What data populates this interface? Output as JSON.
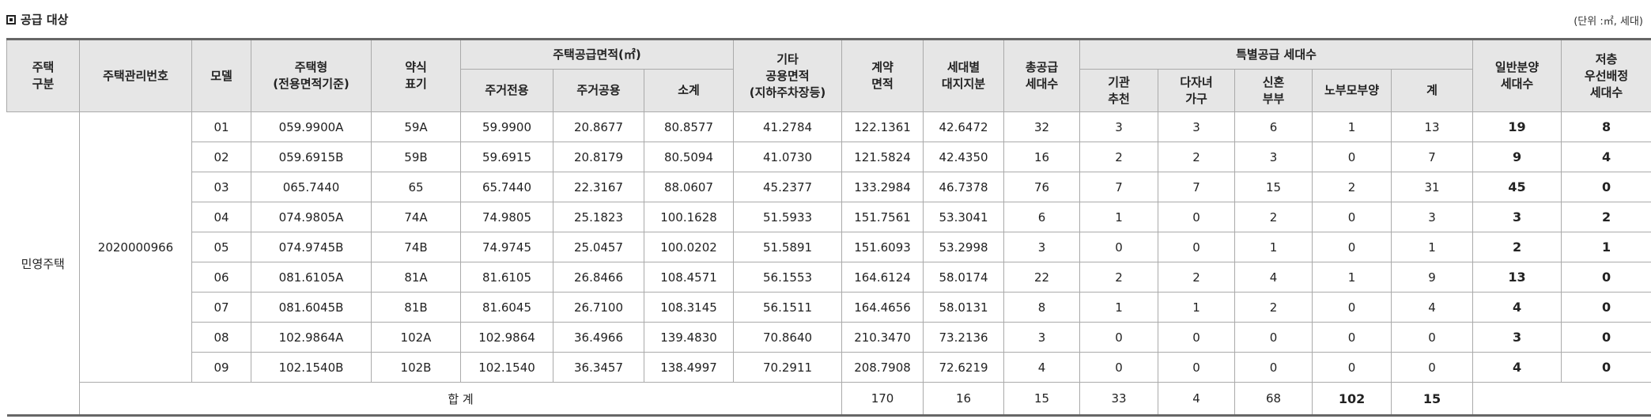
{
  "title": "공급 대상",
  "unit": "(단위 :㎡, 세대)",
  "headers": {
    "housing_type": [
      "주택",
      "구분"
    ],
    "mgmt_no": "주택관리번호",
    "model": "모델",
    "housing_form": [
      "주택형",
      "(전용면적기준)"
    ],
    "abbr": [
      "약식",
      "표기"
    ],
    "supply_area": "주택공급면적(㎡)",
    "private": "주거전용",
    "common": "주거공용",
    "subtotal": "소계",
    "other_common": [
      "기타",
      "공용면적",
      "(지하주차장등)"
    ],
    "contract_area": [
      "계약",
      "면적"
    ],
    "land_share": [
      "세대별",
      "대지지분"
    ],
    "total_units": [
      "총공급",
      "세대수"
    ],
    "special": "특별공급 세대수",
    "inst": [
      "기관",
      "추천"
    ],
    "multi": [
      "다자녀",
      "가구"
    ],
    "newlywed": [
      "신혼",
      "부부"
    ],
    "elderly": "노부모부양",
    "sp_sum": "계",
    "general": [
      "일반분양",
      "세대수"
    ],
    "low_floor": [
      "저층",
      "우선배정",
      "세대수"
    ]
  },
  "group": {
    "housing_type": "민영주택",
    "mgmt_no": "2020000966"
  },
  "rows": [
    [
      "01",
      "059.9900A",
      "59A",
      "59.9900",
      "20.8677",
      "80.8577",
      "41.2784",
      "122.1361",
      "42.6472",
      "32",
      "3",
      "3",
      "6",
      "1",
      "13",
      "19",
      "8"
    ],
    [
      "02",
      "059.6915B",
      "59B",
      "59.6915",
      "20.8179",
      "80.5094",
      "41.0730",
      "121.5824",
      "42.4350",
      "16",
      "2",
      "2",
      "3",
      "0",
      "7",
      "9",
      "4"
    ],
    [
      "03",
      "065.7440",
      "65",
      "65.7440",
      "22.3167",
      "88.0607",
      "45.2377",
      "133.2984",
      "46.7378",
      "76",
      "7",
      "7",
      "15",
      "2",
      "31",
      "45",
      "0"
    ],
    [
      "04",
      "074.9805A",
      "74A",
      "74.9805",
      "25.1823",
      "100.1628",
      "51.5933",
      "151.7561",
      "53.3041",
      "6",
      "1",
      "0",
      "2",
      "0",
      "3",
      "3",
      "2"
    ],
    [
      "05",
      "074.9745B",
      "74B",
      "74.9745",
      "25.0457",
      "100.0202",
      "51.5891",
      "151.6093",
      "53.2998",
      "3",
      "0",
      "0",
      "1",
      "0",
      "1",
      "2",
      "1"
    ],
    [
      "06",
      "081.6105A",
      "81A",
      "81.6105",
      "26.8466",
      "108.4571",
      "56.1553",
      "164.6124",
      "58.0174",
      "22",
      "2",
      "2",
      "4",
      "1",
      "9",
      "13",
      "0"
    ],
    [
      "07",
      "081.6045B",
      "81B",
      "81.6045",
      "26.7100",
      "108.3145",
      "56.1511",
      "164.4656",
      "58.0131",
      "8",
      "1",
      "1",
      "2",
      "0",
      "4",
      "4",
      "0"
    ],
    [
      "08",
      "102.9864A",
      "102A",
      "102.9864",
      "36.4966",
      "139.4830",
      "70.8640",
      "210.3470",
      "73.2136",
      "3",
      "0",
      "0",
      "0",
      "0",
      "0",
      "3",
      "0"
    ],
    [
      "09",
      "102.1540B",
      "102B",
      "102.1540",
      "36.3457",
      "138.4997",
      "70.2911",
      "208.7908",
      "72.6219",
      "4",
      "0",
      "0",
      "0",
      "0",
      "0",
      "4",
      "0"
    ]
  ],
  "total": {
    "label": "합 계",
    "values": [
      "170",
      "16",
      "15",
      "33",
      "4",
      "68",
      "102",
      "15"
    ]
  }
}
